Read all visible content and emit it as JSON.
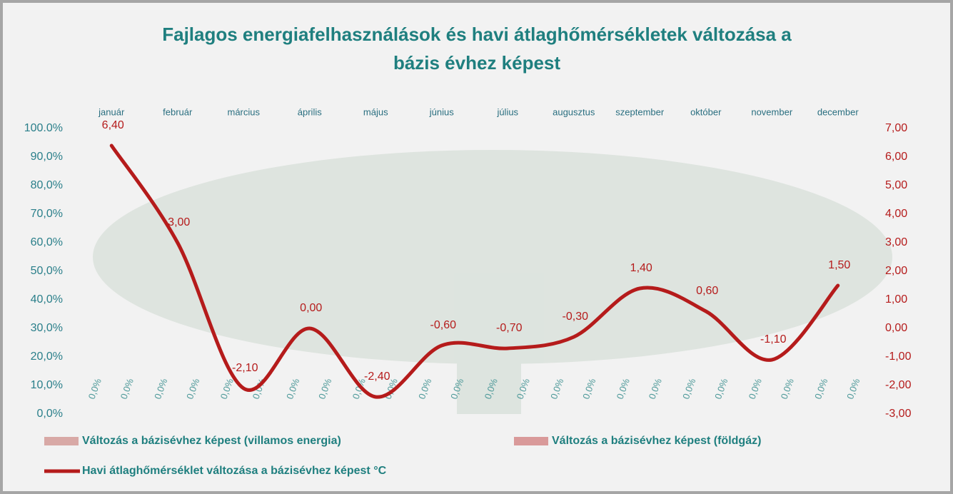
{
  "chart_data": {
    "type": "combo",
    "title": [
      "Fajlagos energiafelhasználások és havi átlaghőmérsékletek  változása a",
      "bázis évhez képest"
    ],
    "categories": [
      "január",
      "február",
      "március",
      "április",
      "május",
      "június",
      "július",
      "augusztus",
      "szeptember",
      "október",
      "november",
      "december"
    ],
    "ylim": [
      0,
      100
    ],
    "yticks": [
      {
        "value": 0,
        "label": "0,0%"
      },
      {
        "value": 10,
        "label": "10,0%"
      },
      {
        "value": 20,
        "label": "20,0%"
      },
      {
        "value": 30,
        "label": "30,0%"
      },
      {
        "value": 40,
        "label": "40,0%"
      },
      {
        "value": 50,
        "label": "50,0%"
      },
      {
        "value": 60,
        "label": "60,0%"
      },
      {
        "value": 70,
        "label": "70,0%"
      },
      {
        "value": 80,
        "label": "80,0%"
      },
      {
        "value": 90,
        "label": "90,0%"
      },
      {
        "value": 100,
        "label": "100.0%"
      }
    ],
    "y2lim": [
      -3,
      7
    ],
    "y2ticks": [
      {
        "value": -3,
        "label": "-3,00"
      },
      {
        "value": -2,
        "label": "-2,00"
      },
      {
        "value": -1,
        "label": "-1,00"
      },
      {
        "value": 0,
        "label": "0,00"
      },
      {
        "value": 1,
        "label": "1,00"
      },
      {
        "value": 2,
        "label": "2,00"
      },
      {
        "value": 3,
        "label": "3,00"
      },
      {
        "value": 4,
        "label": "4,00"
      },
      {
        "value": 5,
        "label": "5,00"
      },
      {
        "value": 6,
        "label": "6,00"
      },
      {
        "value": 7,
        "label": "7,00"
      }
    ],
    "series": [
      {
        "name": "Változás a bázisévhez képest (villamos energia)",
        "type": "bar",
        "color": "#d8a9a6",
        "values": [
          0,
          0,
          0,
          0,
          0,
          0,
          0,
          0,
          0,
          0,
          0,
          0
        ],
        "value_labels": [
          "0,0%",
          "0,0%",
          "0,0%",
          "0,0%",
          "0,0%",
          "0,0%",
          "0,0%",
          "0,0%",
          "0,0%",
          "0,0%",
          "0,0%",
          "0,0%"
        ]
      },
      {
        "name": "Változás a bázisévhez képest (földgáz)",
        "type": "bar",
        "color": "#d99a9a",
        "values": [
          0,
          0,
          0,
          0,
          0,
          0,
          0,
          0,
          0,
          0,
          0,
          0
        ],
        "value_labels": [
          "0,0%",
          "0,0%",
          "0,0%",
          "0,0%",
          "0,0%",
          "0,0%",
          "0,0%",
          "0,0%",
          "0,0%",
          "0,0%",
          "0,0%",
          "0,0%"
        ]
      },
      {
        "name": "Havi átlaghőmérséklet változása a bázisévhez képest °C",
        "type": "line",
        "axis": "y2",
        "color": "#b51b1b",
        "values": [
          6.4,
          3.0,
          -2.1,
          0.0,
          -2.4,
          -0.6,
          -0.7,
          -0.3,
          1.4,
          0.6,
          -1.1,
          1.5
        ],
        "value_labels": [
          "6,40",
          "3,00",
          "-2,10",
          "0,00",
          "-2,40",
          "-0,60",
          "-0,70",
          "-0,30",
          "1,40",
          "0,60",
          "-1,10",
          "1,50"
        ]
      }
    ]
  }
}
